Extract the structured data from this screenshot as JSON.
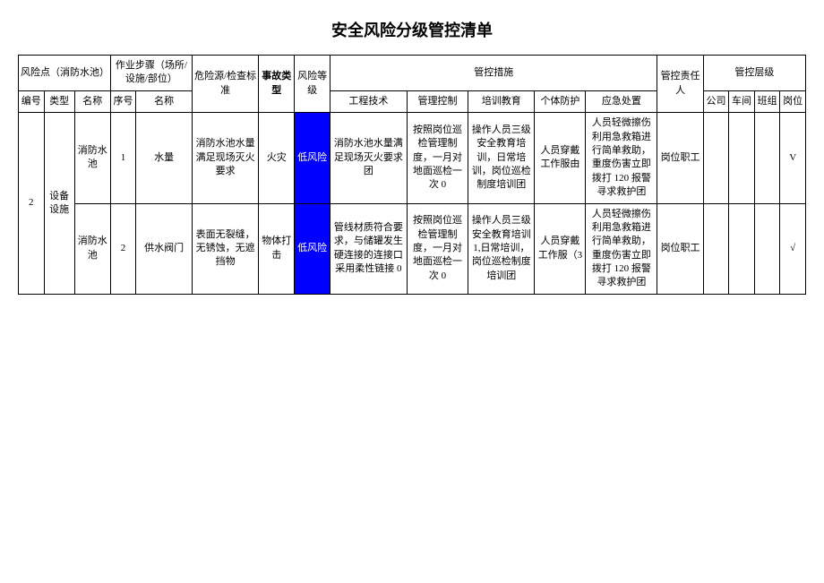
{
  "title": "安全风险分级管控清单",
  "headers": {
    "riskPoint": "风险点（消防水池）",
    "workStep": "作业步骤（场所/设施/部位）",
    "hazardStd": "危险源/检查标准",
    "accidentType": "事故类型",
    "riskLevel": "风险等级",
    "controlMeasures": "管控措施",
    "responsible": "管控责任人",
    "controlLevel": "管控层级",
    "num": "编号",
    "type": "类型",
    "name": "名称",
    "seq": "序号",
    "stepName": "名称",
    "engineering": "工程技术",
    "management": "管理控制",
    "training": "培训教育",
    "ppe": "个体防护",
    "emergency": "应急处置",
    "company": "公司",
    "workshop": "车间",
    "team": "班组",
    "post": "岗位"
  },
  "rows": [
    {
      "num": "2",
      "type": "设备设施",
      "name": "消防水池",
      "seq": "1",
      "stepName": "水量",
      "hazard": "消防水池水量满足现场灭火要求",
      "accident": "火灾",
      "risk": "低风险",
      "engineering": "消防水池水量满足现场灭火要求团",
      "management": "按照岗位巡检管理制度，一月对地面巡检一次 0",
      "training": "操作人员三级安全教育培训，日常培训，岗位巡检制度培训团",
      "ppe": "人员穿戴工作服由",
      "emergency": "人员轻微擦伤利用急救箱进行简单救助，重度伤害立即拨打 120 报警寻求救护团",
      "responsible": "岗位职工",
      "company": "",
      "workshop": "",
      "team": "",
      "post": "V"
    },
    {
      "name": "消防水池",
      "seq": "2",
      "stepName": "供水阀门",
      "hazard": "表面无裂缝，无锈蚀，无遮挡物",
      "accident": "物体打击",
      "risk": "低风险",
      "engineering": "管线材质符合要求，与储罐发生硬连接的连接口采用柔性链接 0",
      "management": "按照岗位巡检管理制度，一月对地面巡检一次 0",
      "training": "操作人员三级安全教育培训 1,日常培训，岗位巡检制度培训团",
      "ppe": "人员穿戴工作服（3",
      "emergency": "人员轻微擦伤利用急救箱进行简单救助，重度伤害立即拨打 120 报警寻求救护团",
      "responsible": "岗位职工",
      "company": "",
      "workshop": "",
      "team": "",
      "post": "√"
    }
  ],
  "riskCellColor": "#0000ff"
}
